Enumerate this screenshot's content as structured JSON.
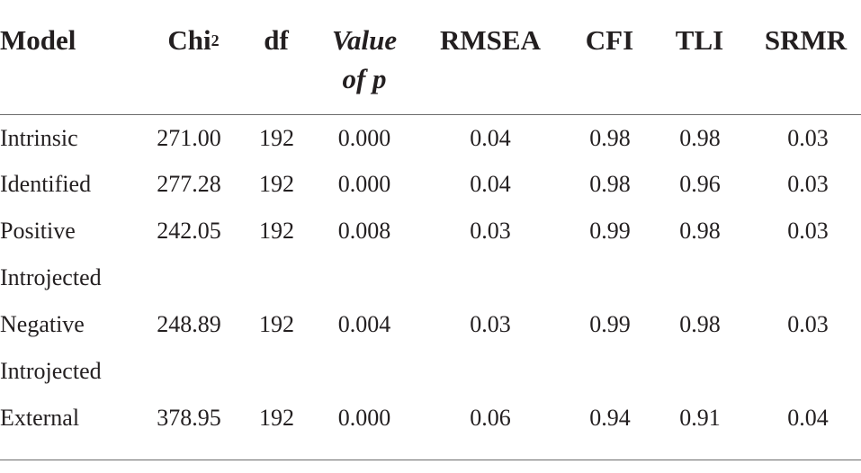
{
  "table": {
    "headers": {
      "model": "Model",
      "chi_base": "Chi",
      "chi_sup": "2",
      "df": "df",
      "pvalue_line1": "Value",
      "pvalue_line2": "of p",
      "rmsea": "RMSEA",
      "cfi": "CFI",
      "tli": "TLI",
      "srmr": "SRMR"
    },
    "rows": [
      {
        "model": "Intrinsic",
        "model_cont": "",
        "chi2": "271.00",
        "df": "192",
        "p": "0.000",
        "rmsea": "0.04",
        "cfi": "0.98",
        "tli": "0.98",
        "srmr": "0.03"
      },
      {
        "model": "Identified",
        "model_cont": "",
        "chi2": "277.28",
        "df": "192",
        "p": "0.000",
        "rmsea": "0.04",
        "cfi": "0.98",
        "tli": "0.96",
        "srmr": "0.03"
      },
      {
        "model": "Positive",
        "model_cont": "Introjected",
        "chi2": "242.05",
        "df": "192",
        "p": "0.008",
        "rmsea": "0.03",
        "cfi": "0.99",
        "tli": "0.98",
        "srmr": "0.03"
      },
      {
        "model": "Negative",
        "model_cont": "Introjected",
        "chi2": "248.89",
        "df": "192",
        "p": "0.004",
        "rmsea": "0.03",
        "cfi": "0.99",
        "tli": "0.98",
        "srmr": "0.03"
      },
      {
        "model": "External",
        "model_cont": "",
        "chi2": "378.95",
        "df": "192",
        "p": "0.000",
        "rmsea": "0.06",
        "cfi": "0.94",
        "tli": "0.91",
        "srmr": "0.04"
      }
    ]
  }
}
